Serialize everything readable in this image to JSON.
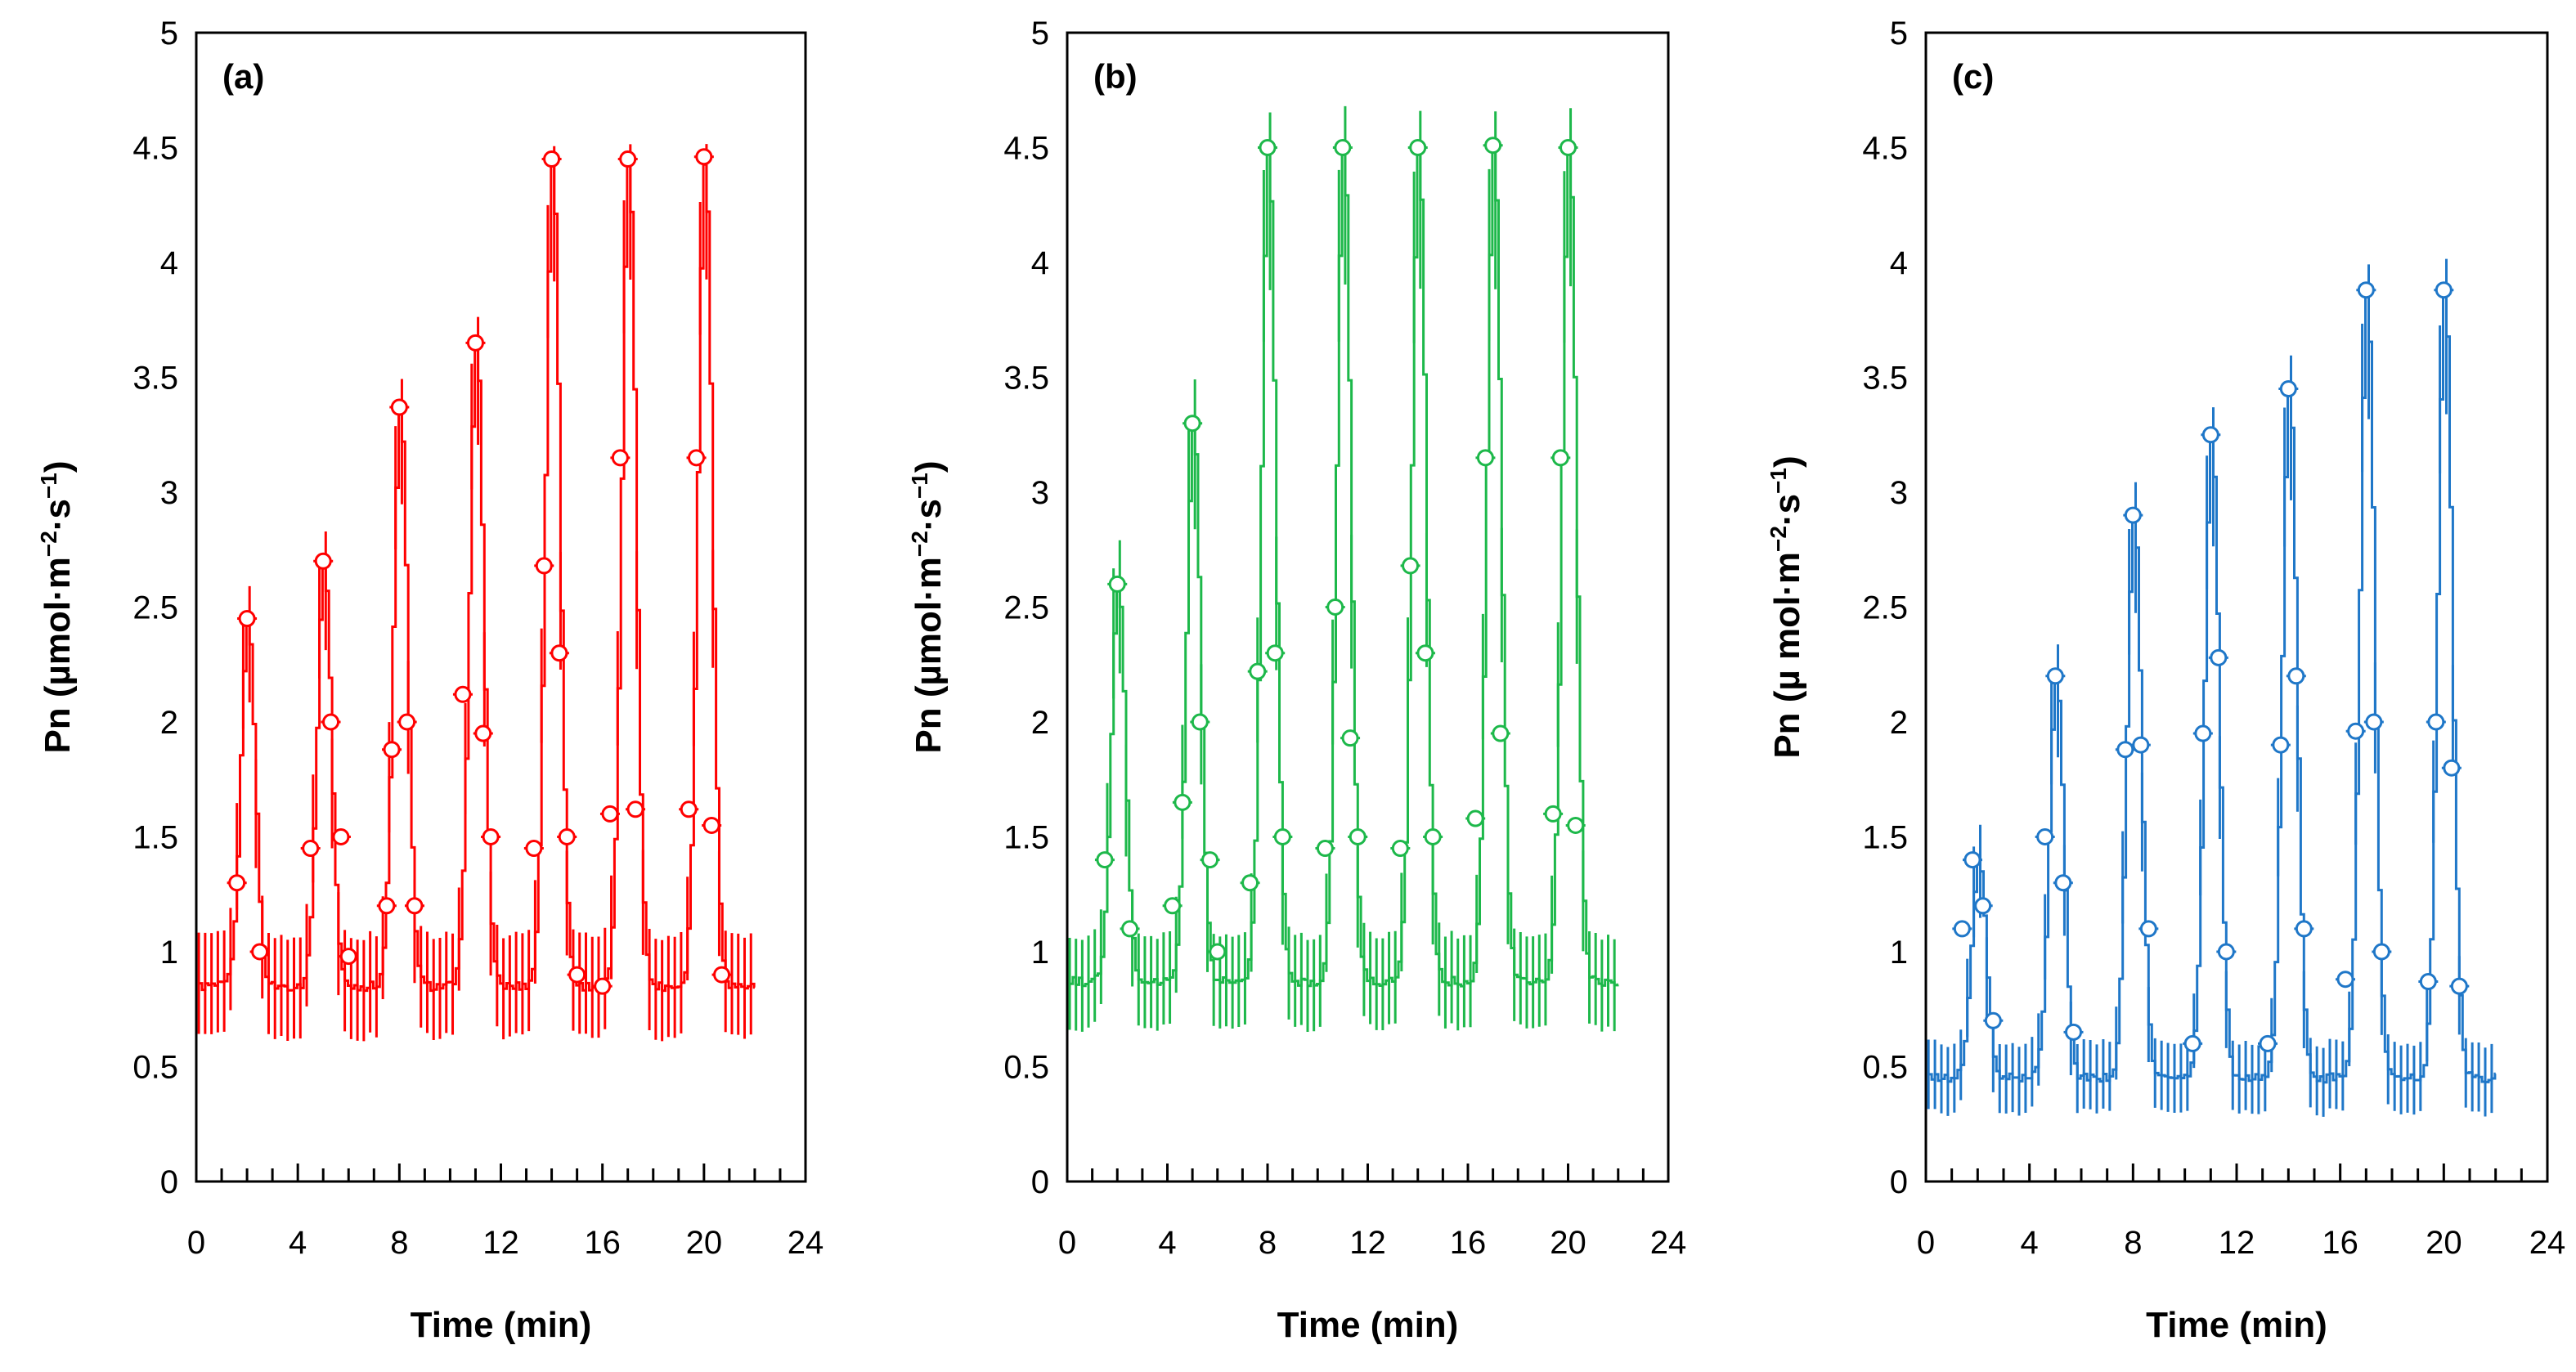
{
  "chart_data": [
    {
      "type": "line",
      "panel_label": "(a)",
      "color": "#ff0000",
      "xlabel": "Time (min)",
      "ylabel_main": "Pn (µmol·m",
      "ylabel_sup1": "−2",
      "ylabel_mid": "·s",
      "ylabel_sup2": "−1",
      "ylabel_end": ")",
      "xlim": [
        0,
        24
      ],
      "ylim": [
        0,
        5
      ],
      "x_ticks": [
        "0",
        "4",
        "8",
        "12",
        "16",
        "20",
        "24"
      ],
      "y_ticks": [
        "0",
        "0.5",
        "1",
        "1.5",
        "2",
        "2.5",
        "3",
        "3.5",
        "4",
        "4.5",
        "5"
      ],
      "peaks": [
        2.45,
        2.7,
        3.37,
        3.65,
        4.45,
        4.45,
        4.46
      ],
      "error_peak": 0.3,
      "baseline": 0.85,
      "error_base": 0.22,
      "markers": [
        {
          "x": 1.6,
          "y": 1.3
        },
        {
          "x": 2.0,
          "y": 2.45
        },
        {
          "x": 2.5,
          "y": 1.0
        },
        {
          "x": 4.5,
          "y": 1.45
        },
        {
          "x": 5.0,
          "y": 2.7
        },
        {
          "x": 5.3,
          "y": 2.0
        },
        {
          "x": 5.7,
          "y": 1.5
        },
        {
          "x": 6.0,
          "y": 0.98
        },
        {
          "x": 7.5,
          "y": 1.2
        },
        {
          "x": 7.7,
          "y": 1.88
        },
        {
          "x": 8.0,
          "y": 3.37
        },
        {
          "x": 8.3,
          "y": 2.0
        },
        {
          "x": 8.6,
          "y": 1.2
        },
        {
          "x": 10.5,
          "y": 2.12
        },
        {
          "x": 11.0,
          "y": 3.65
        },
        {
          "x": 11.3,
          "y": 1.95
        },
        {
          "x": 11.6,
          "y": 1.5
        },
        {
          "x": 13.3,
          "y": 1.45
        },
        {
          "x": 13.7,
          "y": 2.68
        },
        {
          "x": 14.0,
          "y": 4.45
        },
        {
          "x": 14.3,
          "y": 2.3
        },
        {
          "x": 14.6,
          "y": 1.5
        },
        {
          "x": 15.0,
          "y": 0.9
        },
        {
          "x": 16.0,
          "y": 0.85
        },
        {
          "x": 16.3,
          "y": 1.6
        },
        {
          "x": 16.7,
          "y": 3.15
        },
        {
          "x": 17.0,
          "y": 4.45
        },
        {
          "x": 17.3,
          "y": 1.62
        },
        {
          "x": 19.4,
          "y": 1.62
        },
        {
          "x": 19.7,
          "y": 3.15
        },
        {
          "x": 20.0,
          "y": 4.46
        },
        {
          "x": 20.3,
          "y": 1.55
        },
        {
          "x": 20.7,
          "y": 0.9
        }
      ]
    },
    {
      "type": "line",
      "panel_label": "(b)",
      "color": "#1db84a",
      "xlabel": "Time (min)",
      "ylabel_main": "Pn (µmol·m",
      "ylabel_sup1": "−2",
      "ylabel_mid": "·s",
      "ylabel_sup2": "−1",
      "ylabel_end": ")",
      "xlim": [
        0,
        24
      ],
      "ylim": [
        0,
        5
      ],
      "x_ticks": [
        "0",
        "4",
        "8",
        "12",
        "16",
        "20",
        "24"
      ],
      "y_ticks": [
        "0",
        "0.5",
        "1",
        "1.5",
        "2",
        "2.5",
        "3",
        "3.5",
        "4",
        "4.5",
        "5"
      ],
      "peaks": [
        2.6,
        3.3,
        4.5,
        4.5,
        4.5,
        4.51,
        4.5
      ],
      "error_peak": 0.4,
      "baseline": 0.87,
      "error_base": 0.2,
      "markers": [
        {
          "x": 1.5,
          "y": 1.4
        },
        {
          "x": 2.0,
          "y": 2.6
        },
        {
          "x": 2.5,
          "y": 1.1
        },
        {
          "x": 4.2,
          "y": 1.2
        },
        {
          "x": 4.6,
          "y": 1.65
        },
        {
          "x": 5.0,
          "y": 3.3
        },
        {
          "x": 5.3,
          "y": 2.0
        },
        {
          "x": 5.7,
          "y": 1.4
        },
        {
          "x": 6.0,
          "y": 1.0
        },
        {
          "x": 7.3,
          "y": 1.3
        },
        {
          "x": 7.6,
          "y": 2.22
        },
        {
          "x": 8.0,
          "y": 4.5
        },
        {
          "x": 8.3,
          "y": 2.3
        },
        {
          "x": 8.6,
          "y": 1.5
        },
        {
          "x": 10.3,
          "y": 1.45
        },
        {
          "x": 10.7,
          "y": 2.5
        },
        {
          "x": 11.0,
          "y": 4.5
        },
        {
          "x": 11.3,
          "y": 1.93
        },
        {
          "x": 11.6,
          "y": 1.5
        },
        {
          "x": 13.3,
          "y": 1.45
        },
        {
          "x": 13.7,
          "y": 2.68
        },
        {
          "x": 14.0,
          "y": 4.5
        },
        {
          "x": 14.3,
          "y": 2.3
        },
        {
          "x": 14.6,
          "y": 1.5
        },
        {
          "x": 16.3,
          "y": 1.58
        },
        {
          "x": 16.7,
          "y": 3.15
        },
        {
          "x": 17.0,
          "y": 4.51
        },
        {
          "x": 17.3,
          "y": 1.95
        },
        {
          "x": 19.4,
          "y": 1.6
        },
        {
          "x": 19.7,
          "y": 3.15
        },
        {
          "x": 20.0,
          "y": 4.5
        },
        {
          "x": 20.3,
          "y": 1.55
        }
      ]
    },
    {
      "type": "line",
      "panel_label": "(c)",
      "color": "#1f77c8",
      "xlabel": "Time (min)",
      "ylabel_main": "Pn (µ mol·m",
      "ylabel_sup1": "−2",
      "ylabel_mid": "·s",
      "ylabel_sup2": "−1",
      "ylabel_end": ")",
      "xlim": [
        0,
        24
      ],
      "ylim": [
        0,
        5
      ],
      "x_ticks": [
        "0",
        "4",
        "8",
        "12",
        "16",
        "20",
        "24"
      ],
      "y_ticks": [
        "0",
        "0.5",
        "1",
        "1.5",
        "2",
        "2.5",
        "3",
        "3.5",
        "4",
        "4.5",
        "5"
      ],
      "peaks": [
        1.4,
        2.2,
        2.9,
        3.25,
        3.45,
        3.88,
        3.88
      ],
      "error_peak": 0.35,
      "baseline": 0.45,
      "error_base": 0.15,
      "markers": [
        {
          "x": 1.4,
          "y": 1.1
        },
        {
          "x": 1.8,
          "y": 1.4
        },
        {
          "x": 2.2,
          "y": 1.2
        },
        {
          "x": 2.6,
          "y": 0.7
        },
        {
          "x": 4.6,
          "y": 1.5
        },
        {
          "x": 5.0,
          "y": 2.2
        },
        {
          "x": 5.3,
          "y": 1.3
        },
        {
          "x": 5.7,
          "y": 0.65
        },
        {
          "x": 7.7,
          "y": 1.88
        },
        {
          "x": 8.0,
          "y": 2.9
        },
        {
          "x": 8.3,
          "y": 1.9
        },
        {
          "x": 8.6,
          "y": 1.1
        },
        {
          "x": 10.3,
          "y": 0.6
        },
        {
          "x": 10.7,
          "y": 1.95
        },
        {
          "x": 11.0,
          "y": 3.25
        },
        {
          "x": 11.3,
          "y": 2.28
        },
        {
          "x": 11.6,
          "y": 1.0
        },
        {
          "x": 13.2,
          "y": 0.6
        },
        {
          "x": 13.7,
          "y": 1.9
        },
        {
          "x": 14.0,
          "y": 3.45
        },
        {
          "x": 14.3,
          "y": 2.2
        },
        {
          "x": 14.6,
          "y": 1.1
        },
        {
          "x": 16.2,
          "y": 0.88
        },
        {
          "x": 16.6,
          "y": 1.96
        },
        {
          "x": 17.0,
          "y": 3.88
        },
        {
          "x": 17.3,
          "y": 2.0
        },
        {
          "x": 17.6,
          "y": 1.0
        },
        {
          "x": 19.4,
          "y": 0.87
        },
        {
          "x": 19.7,
          "y": 2.0
        },
        {
          "x": 20.0,
          "y": 3.88
        },
        {
          "x": 20.3,
          "y": 1.8
        },
        {
          "x": 20.6,
          "y": 0.85
        }
      ]
    }
  ]
}
